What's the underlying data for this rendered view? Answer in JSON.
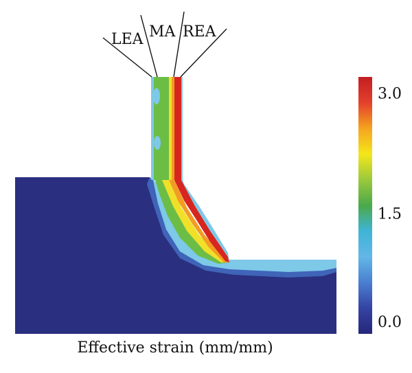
{
  "figure": {
    "caption": "Effective strain (mm/mm)",
    "labels": {
      "lea": "LEA",
      "ma": "MA",
      "rea": "REA"
    }
  },
  "colorbar": {
    "ticks": [
      {
        "value": 3.0,
        "label": "3.0"
      },
      {
        "value": 1.5,
        "label": "1.5"
      },
      {
        "value": 0.0,
        "label": "0.0"
      }
    ],
    "range": [
      0.0,
      3.2
    ],
    "stops": [
      "#26277a",
      "#3543a3",
      "#4a7fd0",
      "#62b7e7",
      "#3fb4d6",
      "#4aa94a",
      "#9bc93c",
      "#f4e61b",
      "#f5a31e",
      "#e4402c",
      "#c31d21"
    ]
  },
  "colors": {
    "background_strain": "#2b2f7f",
    "low": "#4a7fd0",
    "light_blue": "#7ec8e8",
    "green": "#6cbd45",
    "yellow": "#f0e02a",
    "orange": "#f39c24",
    "red": "#d7261f"
  }
}
